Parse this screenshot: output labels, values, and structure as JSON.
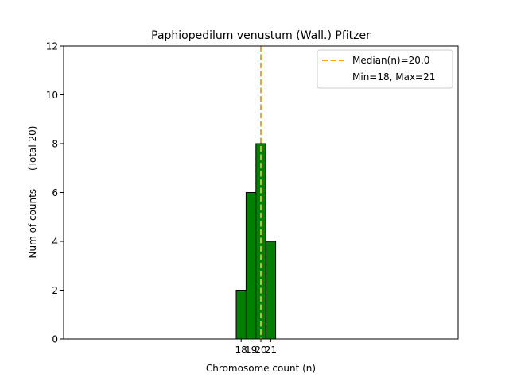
{
  "chart_data": {
    "type": "bar",
    "title": "Paphiopedilum venustum (Wall.) Pfitzer",
    "xlabel": "Chromosome count (n)",
    "ylabel": "Num of counts      (Total 20)",
    "categories": [
      18,
      19,
      20,
      21
    ],
    "values": [
      2,
      6,
      8,
      4
    ],
    "xlim": [
      0,
      40
    ],
    "ylim": [
      0,
      12
    ],
    "yticks": [
      0,
      2,
      4,
      6,
      8,
      10,
      12
    ],
    "xticks": [
      "18",
      "19",
      "20",
      "21"
    ],
    "bar_color": "#008000",
    "bar_edge_color": "#000000",
    "median": 20.0,
    "median_color": "#FFA500",
    "legend": {
      "placement": "top-right",
      "entries": [
        "Median(n)=20.0",
        "Min=18, Max=21"
      ]
    },
    "grid": false
  }
}
